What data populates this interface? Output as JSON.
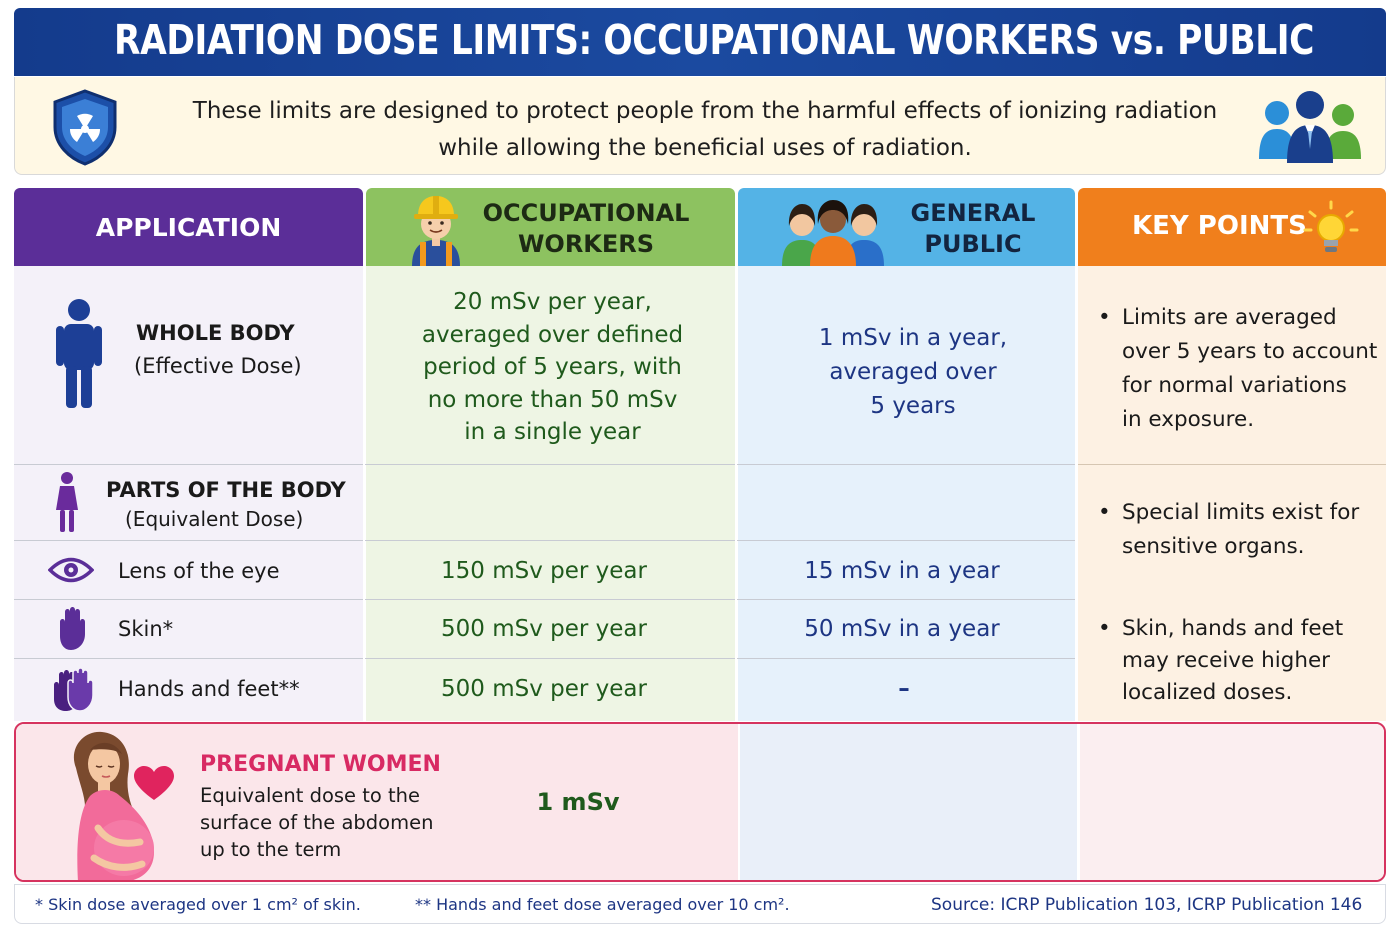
{
  "title": "RADIATION DOSE LIMITS: OCCUPATIONAL WORKERS vs. PUBLIC",
  "intro": {
    "line1": "These limits are designed to protect people from the harmful effects of ionizing radiation",
    "line2": "while allowing the beneficial uses of radiation."
  },
  "headers": {
    "application": "APPLICATION",
    "occupational_line1": "OCCUPATIONAL",
    "occupational_line2": "WORKERS",
    "public_line1": "GENERAL",
    "public_line2": "PUBLIC",
    "key_points": "KEY POINTS"
  },
  "whole_body": {
    "label": "WHOLE BODY",
    "sub": "(Effective Dose)",
    "occupational": [
      "20 mSv per year,",
      "averaged over defined",
      "period of 5 years, with",
      "no more than 50 mSv",
      "in a single year"
    ],
    "public": [
      "1 mSv in a year,",
      "averaged over",
      "5 years"
    ]
  },
  "parts": {
    "label": "PARTS OF THE BODY",
    "sub": "(Equivalent Dose)"
  },
  "rows": [
    {
      "label": "Lens of the eye",
      "occupational": "150 mSv per year",
      "public": "15 mSv in a year"
    },
    {
      "label": "Skin*",
      "occupational": "500 mSv per year",
      "public": "50 mSv in a year"
    },
    {
      "label": "Hands and feet**",
      "occupational": "500 mSv per year",
      "public": "–"
    }
  ],
  "key_points": {
    "p1": [
      "Limits are averaged",
      "over 5 years to account",
      "for normal variations",
      "in exposure."
    ],
    "p2": [
      "Special limits exist for",
      "sensitive organs."
    ],
    "p3": [
      "Skin, hands and feet",
      "may receive higher",
      "localized doses."
    ]
  },
  "pregnant": {
    "title": "PREGNANT WOMEN",
    "desc": [
      "Equivalent dose to the",
      "surface of the abdomen",
      "up to the term"
    ],
    "value": "1 mSv"
  },
  "footer": {
    "note1": "* Skin dose averaged over 1 cm² of skin.",
    "note2": "** Hands and feet dose averaged over 10 cm².",
    "source": "Source: ICRP Publication 103, ICRP Publication 146"
  },
  "icons": [
    "shield-radiation-icon",
    "people-group-icon",
    "worker-icon",
    "public-group-icon",
    "lightbulb-icon",
    "person-icon",
    "female-icon",
    "eye-icon",
    "hand-icon",
    "hands-icon",
    "pregnant-woman-icon",
    "heart-icon"
  ],
  "colors": {
    "title_bg": "#143b8c",
    "application": "#5b2e98",
    "occupational": "#8dc260",
    "public": "#54b3e6",
    "key_points": "#f07f1c",
    "pregnant_accent": "#d6335f"
  }
}
